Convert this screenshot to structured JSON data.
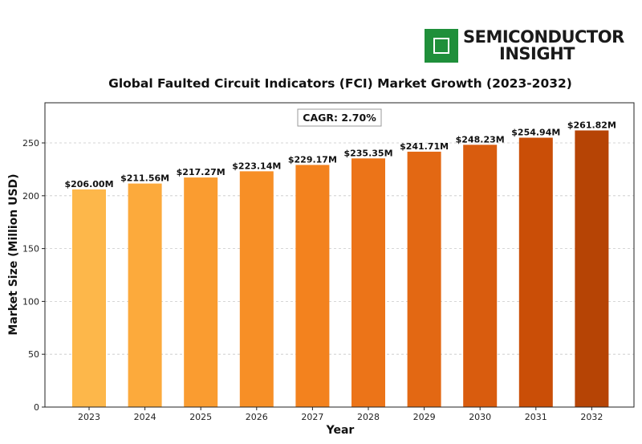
{
  "logo": {
    "line1": "SEMICONDUCTOR",
    "line2": "INSIGHT",
    "icon": "microchip-icon",
    "color": "#1f8f3a"
  },
  "chart_data": {
    "type": "bar",
    "title": "Global Faulted Circuit Indicators (FCI) Market Growth (2023-2032)",
    "xlabel": "Year",
    "ylabel": "Market Size (Million USD)",
    "categories": [
      "2023",
      "2024",
      "2025",
      "2026",
      "2027",
      "2028",
      "2029",
      "2030",
      "2031",
      "2032"
    ],
    "values": [
      206.0,
      211.56,
      217.27,
      223.14,
      229.17,
      235.35,
      241.71,
      248.23,
      254.94,
      261.82
    ],
    "value_labels": [
      "$206.00M",
      "$211.56M",
      "$217.27M",
      "$223.14M",
      "$229.17M",
      "$235.35M",
      "$241.71M",
      "$248.23M",
      "$254.94M",
      "$261.82M"
    ],
    "colors": [
      "#fdb74a",
      "#fcaa3c",
      "#fa9c30",
      "#f78f26",
      "#f3821e",
      "#ec7418",
      "#e36813",
      "#d95c0e",
      "#ca4e07",
      "#b64405"
    ],
    "yticks": [
      0,
      50,
      100,
      150,
      200,
      250
    ],
    "ylim": [
      0,
      288
    ],
    "grid": true,
    "annotation": "CAGR: 2.70%"
  }
}
